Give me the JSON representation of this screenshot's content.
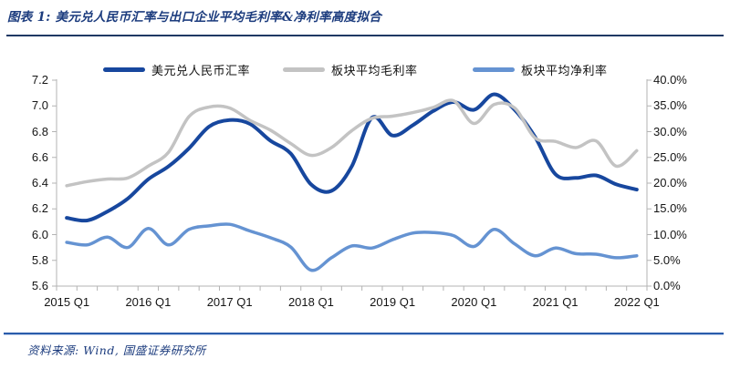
{
  "header": {
    "title": "图表 1: 美元兑人民币汇率与出口企业平均毛利率&净利率高度拟合"
  },
  "legend": {
    "items": [
      {
        "label": "美元兑人民币汇率"
      },
      {
        "label": "板块平均毛利率"
      },
      {
        "label": "板块平均净利率"
      }
    ]
  },
  "colors": {
    "title_blue": "#1c3c7e",
    "title_divider": "#1f3864",
    "footer_divider": "#2a5cab",
    "axis_gray": "#b3b3b3",
    "series_navy": "#17479e",
    "series_gray": "#c3c3c3",
    "series_lightblue": "#6593d2"
  },
  "footer": {
    "source": "资料来源: Wind, 国盛证券研究所"
  },
  "chart_data": {
    "type": "line",
    "title": "美元兑人民币汇率与出口企业平均毛利率&净利率高度拟合",
    "x_labels": [
      "2015 Q1",
      "2016 Q1",
      "2017 Q1",
      "2018 Q1",
      "2019 Q1",
      "2020 Q1",
      "2021 Q1",
      "2022 Q1"
    ],
    "x_label_indices": [
      0,
      4,
      8,
      12,
      16,
      20,
      24,
      28
    ],
    "left_axis": {
      "min": 5.6,
      "max": 7.2,
      "tick_labels": [
        "7.2",
        "7.0",
        "6.8",
        "6.6",
        "6.4",
        "6.2",
        "6.0",
        "5.8",
        "5.6"
      ]
    },
    "right_axis": {
      "min": 0,
      "max": 40,
      "tick_labels": [
        "40.0%",
        "35.0%",
        "30.0%",
        "25.0%",
        "20.0%",
        "15.0%",
        "10.0%",
        "5.0%",
        "0.0%"
      ]
    },
    "grid": false,
    "legend_position": "top",
    "series": [
      {
        "name": "美元兑人民币汇率",
        "axis": "left",
        "color": "#17479e",
        "stroke_width": 4,
        "values": [
          6.13,
          6.11,
          6.18,
          6.28,
          6.43,
          6.53,
          6.67,
          6.84,
          6.89,
          6.86,
          6.73,
          6.63,
          6.39,
          6.34,
          6.53,
          6.91,
          6.77,
          6.85,
          6.96,
          7.03,
          6.97,
          7.09,
          6.97,
          6.76,
          6.47,
          6.44,
          6.46,
          6.39,
          6.35
        ]
      },
      {
        "name": "板块平均毛利率",
        "axis": "right",
        "color": "#c3c3c3",
        "stroke_width": 3.5,
        "values": [
          19.5,
          20.3,
          20.8,
          21.0,
          23.3,
          26.0,
          32.9,
          34.8,
          34.6,
          32.2,
          30.3,
          27.7,
          25.4,
          26.9,
          30.2,
          32.6,
          33.0,
          33.7,
          34.7,
          36.0,
          31.6,
          35.3,
          34.6,
          28.8,
          28.1,
          26.9,
          28.2,
          23.3,
          26.3
        ]
      },
      {
        "name": "板块平均净利率",
        "axis": "right",
        "color": "#6593d2",
        "stroke_width": 3.5,
        "values": [
          8.5,
          8.0,
          9.5,
          7.5,
          11.2,
          8.0,
          11.0,
          11.7,
          12.0,
          10.7,
          9.4,
          7.6,
          3.1,
          5.5,
          7.8,
          7.4,
          9.0,
          10.3,
          10.4,
          9.8,
          7.7,
          11.0,
          8.2,
          5.9,
          7.4,
          6.3,
          6.2,
          5.5,
          5.9
        ]
      }
    ]
  }
}
